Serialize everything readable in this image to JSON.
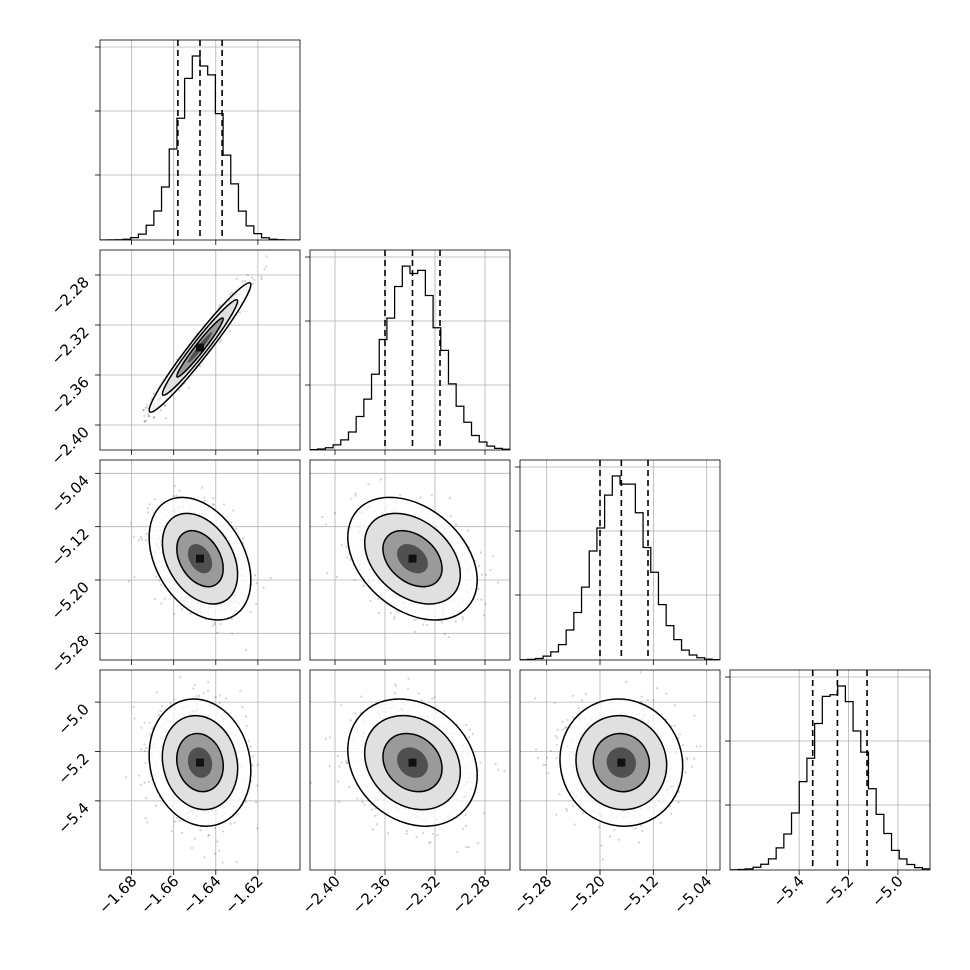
{
  "chart_data": {
    "type": "corner",
    "ndim": 4,
    "grid": true,
    "quantiles": [
      0.16,
      0.5,
      0.84
    ],
    "parameters": [
      {
        "mean": -1.6475,
        "sd": 0.0105,
        "range": [
          -1.695,
          -1.6
        ],
        "ticks": [
          -1.68,
          -1.66,
          -1.64,
          -1.62
        ],
        "tick_labels": [
          "−1.68",
          "−1.66",
          "−1.64",
          "−1.62"
        ]
      },
      {
        "mean": -2.338,
        "sd": 0.0225,
        "range": [
          -2.42,
          -2.26
        ],
        "ticks": [
          -2.4,
          -2.36,
          -2.32,
          -2.28
        ],
        "tick_labels": [
          "−2.40",
          "−2.36",
          "−2.32",
          "−2.28"
        ]
      },
      {
        "mean": -5.168,
        "sd": 0.04,
        "range": [
          -5.32,
          -5.02
        ],
        "ticks": [
          -5.28,
          -5.2,
          -5.12,
          -5.04
        ],
        "tick_labels": [
          "−5.28",
          "−5.20",
          "−5.12",
          "−5.04"
        ]
      },
      {
        "mean": -5.245,
        "sd": 0.112,
        "range": [
          -5.68,
          -4.87
        ],
        "ticks": [
          -5.4,
          -5.2,
          -5.0
        ],
        "tick_labels": [
          "−5.4",
          "−5.2",
          "−5.0"
        ]
      }
    ],
    "correlations": [
      [
        0,
        1,
        0.97
      ],
      [
        0,
        2,
        -0.35
      ],
      [
        1,
        2,
        -0.35
      ],
      [
        0,
        3,
        -0.12
      ],
      [
        1,
        3,
        -0.2
      ],
      [
        2,
        3,
        -0.05
      ]
    ],
    "histogram_peaks": [
      [
        -1.6475,
        1.0
      ],
      [
        -2.338,
        1.0
      ],
      [
        -5.168,
        1.0
      ],
      [
        -5.255,
        1.0
      ]
    ],
    "quantile_values": [
      [
        -1.658,
        -1.6475,
        -1.637
      ],
      [
        -2.36,
        -2.338,
        -2.316
      ],
      [
        -5.2,
        -5.168,
        -5.128
      ],
      [
        -5.345,
        -5.245,
        -5.125
      ]
    ]
  }
}
